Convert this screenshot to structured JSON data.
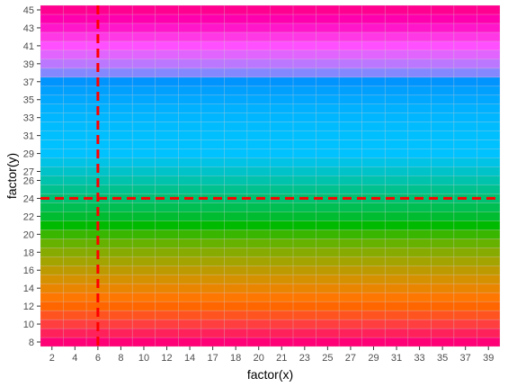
{
  "chart_data": {
    "type": "heatmap",
    "xlabel": "factor(x)",
    "ylabel": "factor(y)",
    "x": [
      2,
      4,
      6,
      8,
      10,
      12,
      14,
      17,
      18,
      20,
      21,
      23,
      25,
      27,
      29,
      31,
      33,
      35,
      37,
      39
    ],
    "y": [
      8,
      9,
      10,
      11,
      12,
      13,
      14,
      15,
      16,
      17,
      18,
      19,
      20,
      21,
      22,
      23,
      24,
      25,
      26,
      27,
      28,
      29,
      30,
      31,
      32,
      33,
      34,
      35,
      36,
      37,
      38,
      39,
      40,
      41,
      42,
      43,
      44,
      45
    ],
    "x_tick_labels": [
      "2",
      "4",
      "6",
      "8",
      "10",
      "12",
      "14",
      "17",
      "18",
      "20",
      "21",
      "23",
      "25",
      "27",
      "29",
      "31",
      "33",
      "35",
      "37",
      "39"
    ],
    "y_tick_labels": [
      "8",
      "10",
      "12",
      "14",
      "16",
      "18",
      "20",
      "22",
      "24",
      "26",
      "27",
      "29",
      "31",
      "33",
      "35",
      "37",
      "39",
      "41",
      "43",
      "45"
    ],
    "fill": "hue varies with y",
    "reference_lines": [
      {
        "orientation": "vertical",
        "axis": "x",
        "value": 6,
        "color": "#ff0000",
        "style": "dashed"
      },
      {
        "orientation": "horizontal",
        "axis": "y",
        "value": 24,
        "color": "#ff0000",
        "style": "dashed"
      }
    ],
    "grid": true,
    "legend": "none"
  }
}
